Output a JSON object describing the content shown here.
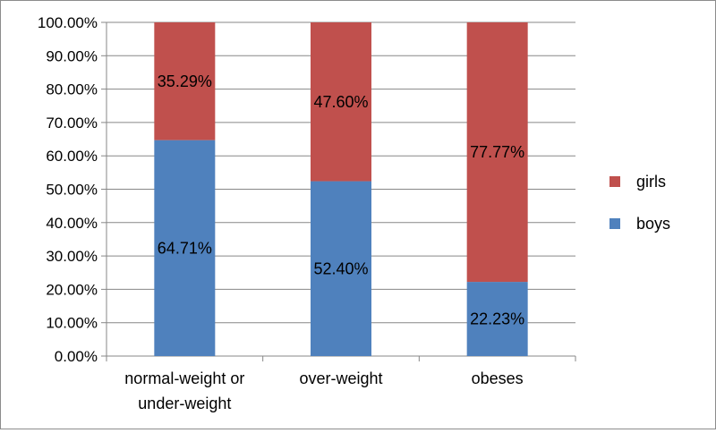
{
  "chart_data": {
    "type": "bar",
    "stacked": true,
    "categories": [
      [
        "normal-weight or",
        "under-weight"
      ],
      [
        "over-weight"
      ],
      [
        "obeses"
      ]
    ],
    "series": [
      {
        "name": "boys",
        "values": [
          64.71,
          52.4,
          22.23
        ],
        "labels": [
          "64.71%",
          "52.40%",
          "22.23%"
        ],
        "color": "#4f81bd"
      },
      {
        "name": "girls",
        "values": [
          35.29,
          47.6,
          77.77
        ],
        "labels": [
          "35.29%",
          "47.60%",
          "77.77%"
        ],
        "color": "#c0504d"
      }
    ],
    "y_ticks": [
      "0.00%",
      "10.00%",
      "20.00%",
      "30.00%",
      "40.00%",
      "50.00%",
      "60.00%",
      "70.00%",
      "80.00%",
      "90.00%",
      "100.00%"
    ],
    "ylim": [
      0,
      100
    ],
    "grid": true,
    "legend": {
      "placement": "right",
      "entries": [
        {
          "name": "girls",
          "color": "#c0504d"
        },
        {
          "name": "boys",
          "color": "#4f81bd"
        }
      ]
    },
    "title": "",
    "xlabel": "",
    "ylabel": ""
  }
}
